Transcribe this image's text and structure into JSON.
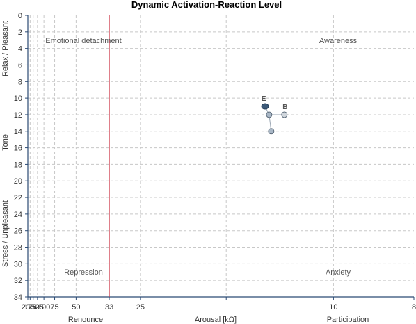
{
  "chart_data": {
    "type": "scatter",
    "title": "Dynamic Activation-Reaction Level",
    "xlabel": "Arousal [kΩ]",
    "x_region_labels": [
      "Renounce",
      "Participation"
    ],
    "ylabels": [
      "Relax / Pleasant",
      "Tone",
      "Stress / Unpleasant"
    ],
    "x_ticks": [
      200,
      175,
      150,
      125,
      100,
      75,
      50,
      33,
      25,
      10,
      8
    ],
    "x_ticks_unlabeled": [
      15
    ],
    "y_ticks": [
      0,
      2,
      4,
      6,
      8,
      10,
      12,
      14,
      16,
      18,
      20,
      22,
      24,
      26,
      28,
      30,
      32,
      34
    ],
    "ylim": [
      0,
      34
    ],
    "y_inverted": true,
    "x_scale": "reciprocal",
    "grid": true,
    "reference_line_x": 33,
    "reference_line_color": "#cc3344",
    "quadrant_labels": [
      {
        "text": "Emotional detachment",
        "position": "top-left"
      },
      {
        "text": "Awareness",
        "position": "top-right"
      },
      {
        "text": "Repression",
        "position": "bottom-left"
      },
      {
        "text": "Anxiety",
        "position": "bottom-right"
      }
    ],
    "points": [
      {
        "label": "E",
        "x": 12.7,
        "y": 11,
        "color": "#3d5a78",
        "end": true
      },
      {
        "label": "",
        "x": 12.5,
        "y": 12,
        "color": "#a9b7c6"
      },
      {
        "label": "B",
        "x": 11.8,
        "y": 12,
        "color": "#d0d6dc"
      },
      {
        "label": "",
        "x": 12.4,
        "y": 14,
        "color": "#a9b7c6"
      }
    ],
    "connections": [
      [
        0,
        1
      ],
      [
        1,
        2
      ],
      [
        1,
        3
      ]
    ]
  }
}
